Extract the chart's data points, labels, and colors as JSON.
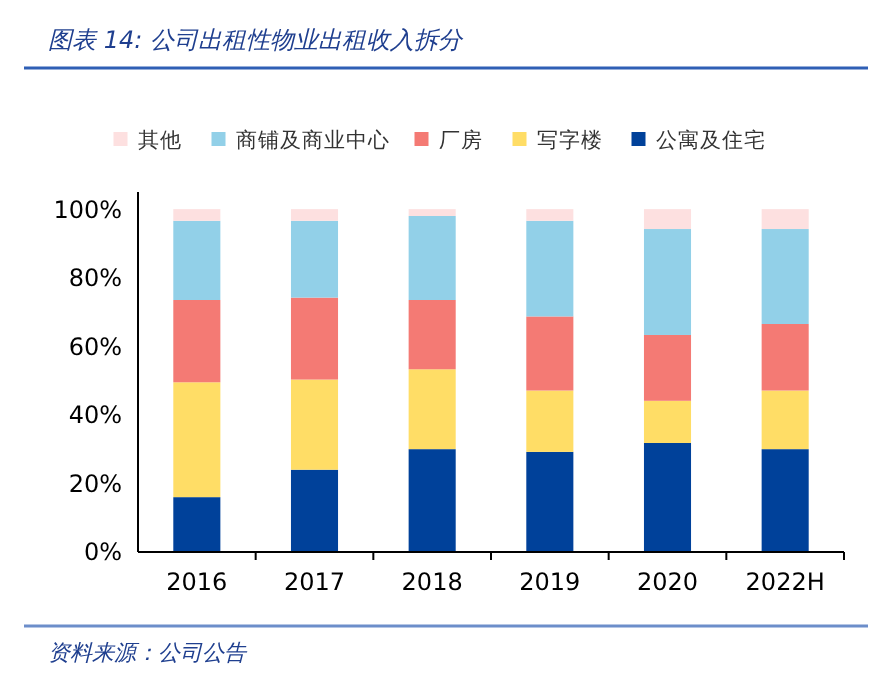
{
  "chart_data": {
    "type": "bar",
    "stacked": true,
    "title": "图表 14: 公司出租性物业出租收入拆分",
    "categories": [
      "2016",
      "2017",
      "2018",
      "2019",
      "2020",
      "2022H"
    ],
    "series": [
      {
        "name": "公寓及住宅",
        "color": "#00419a",
        "values": [
          16,
          24,
          30,
          29.2,
          31.8,
          30
        ]
      },
      {
        "name": "写字楼",
        "color": "#ffdd66",
        "values": [
          33.5,
          26.3,
          23.3,
          17.9,
          12.3,
          17.1
        ]
      },
      {
        "name": "厂房",
        "color": "#f47a74",
        "values": [
          24,
          23.9,
          20.2,
          21.6,
          19.2,
          19.4
        ]
      },
      {
        "name": "商铺及商业中心",
        "color": "#92d0e8",
        "values": [
          23.1,
          22.4,
          24.5,
          27.9,
          30.9,
          27.7
        ]
      },
      {
        "name": "其他",
        "color": "#fde0e0",
        "values": [
          3.4,
          3.4,
          2,
          3.4,
          5.8,
          5.8
        ]
      }
    ],
    "ylim": [
      0,
      105
    ],
    "yticks": [
      {
        "value": 0,
        "label": "0%"
      },
      {
        "value": 20,
        "label": "20%"
      },
      {
        "value": 40,
        "label": "40%"
      },
      {
        "value": 60,
        "label": "60%"
      },
      {
        "value": 80,
        "label": "80%"
      },
      {
        "value": 100,
        "label": "100%"
      }
    ],
    "legend": "top",
    "grid": false,
    "annotations": [
      "资料来源：公司公告"
    ]
  }
}
